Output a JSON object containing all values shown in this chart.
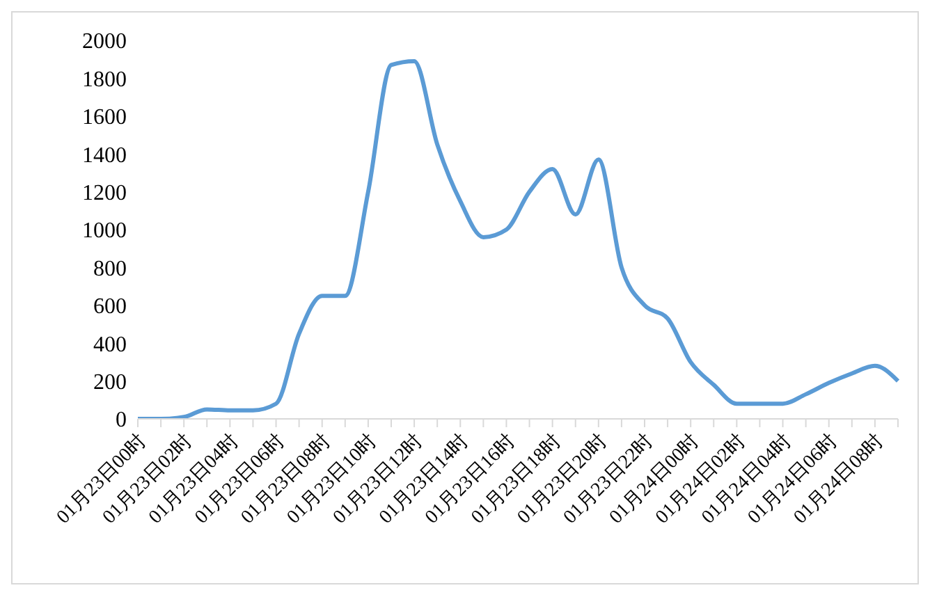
{
  "chart_data": {
    "type": "line",
    "categories": [
      "01月23日00时",
      null,
      "01月23日02时",
      null,
      "01月23日04时",
      null,
      "01月23日06时",
      null,
      "01月23日08时",
      null,
      "01月23日10时",
      null,
      "01月23日12时",
      null,
      "01月23日14时",
      null,
      "01月23日16时",
      null,
      "01月23日18时",
      null,
      "01月23日20时",
      null,
      "01月23日22时",
      null,
      "01月24日00时",
      null,
      "01月24日02时",
      null,
      "01月24日04时",
      null,
      "01月24日06时",
      null,
      "01月24日08时",
      null
    ],
    "series": [
      {
        "color": "#5b9bd5",
        "values": [
          0,
          0,
          10,
          50,
          45,
          45,
          80,
          450,
          650,
          650,
          1200,
          1870,
          1890,
          1450,
          1150,
          960,
          1000,
          1200,
          1320,
          1080,
          1370,
          800,
          600,
          530,
          300,
          180,
          80,
          80,
          80,
          130,
          190,
          240,
          280,
          200
        ]
      }
    ],
    "ylim": [
      0,
      2000
    ],
    "yticks": [
      0,
      200,
      400,
      600,
      800,
      1000,
      1200,
      1400,
      1600,
      1800,
      2000
    ],
    "grid": false,
    "legend": false,
    "marker": "none",
    "line_style": "solid"
  }
}
